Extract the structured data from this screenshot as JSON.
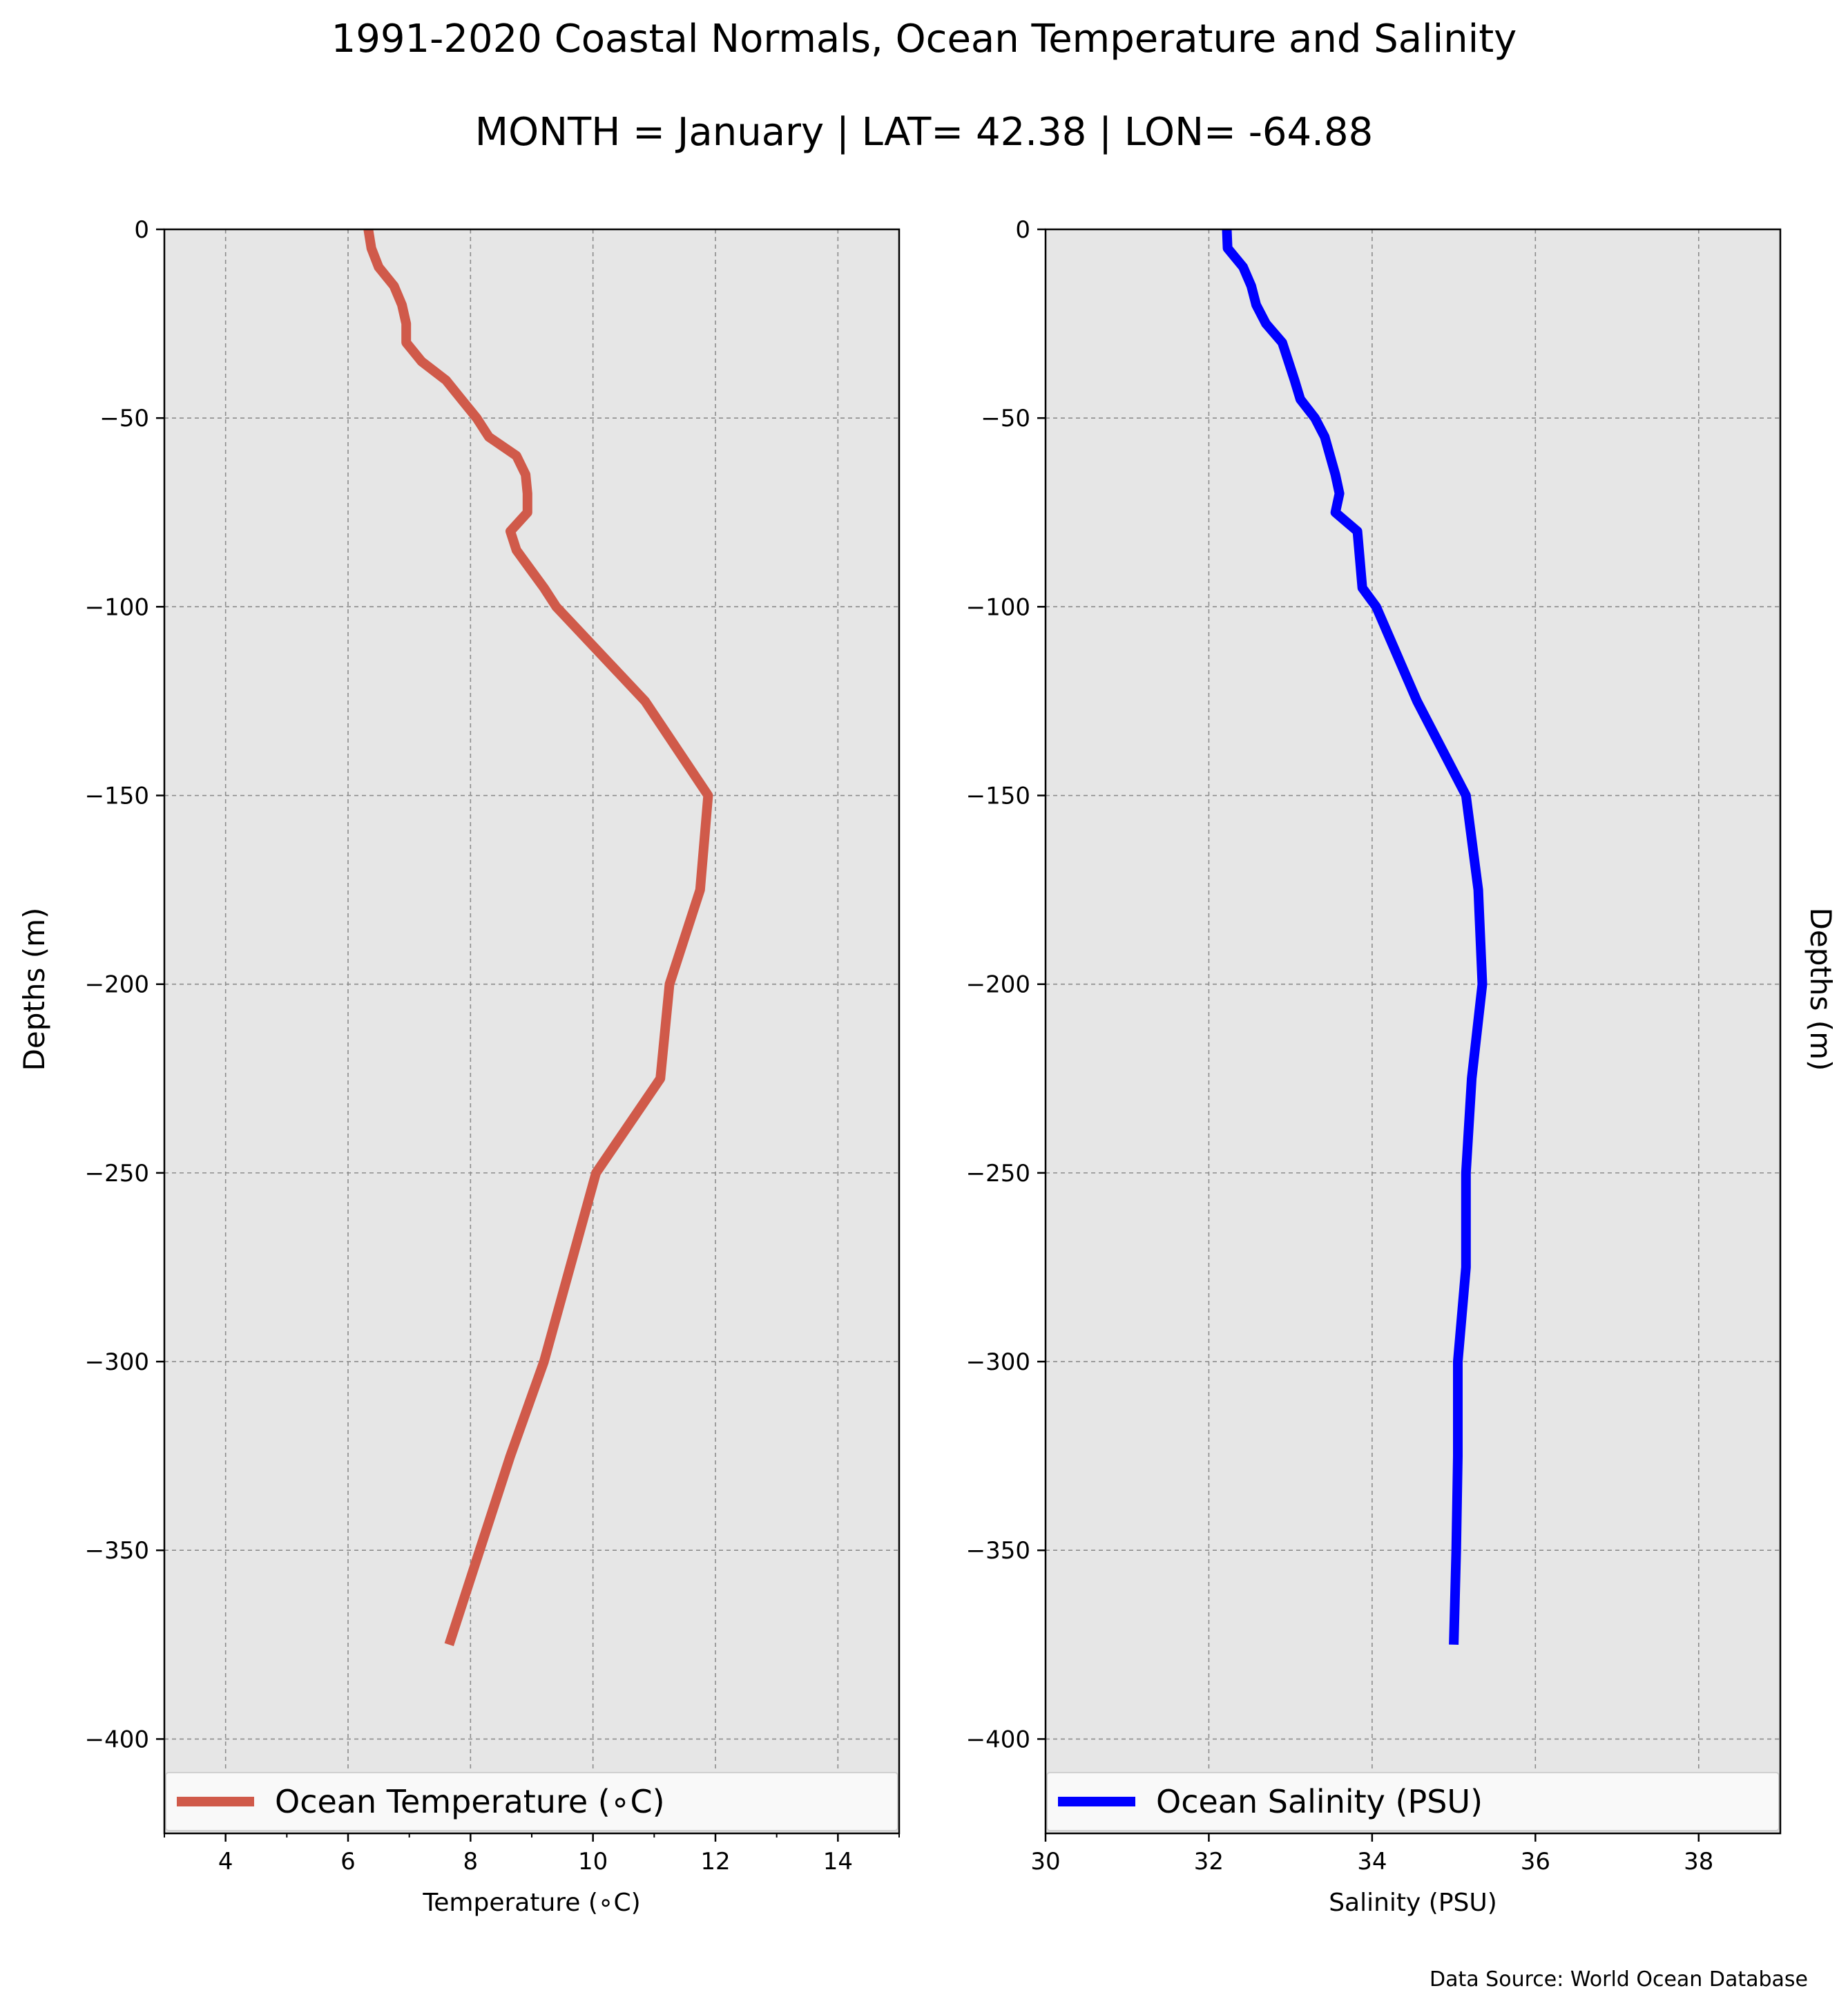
{
  "title": "1991-2020 Coastal Normals, Ocean Temperature and Salinity",
  "subtitle": "MONTH = January | LAT= 42.38 | LON= -64.88",
  "source": "Data Source: World Ocean Database",
  "chart_data": [
    {
      "type": "line",
      "xlabel": "Temperature ($^\\circ$C)",
      "xlabel_display": "Temperature (∘C)",
      "ylabel": "Depths (m)",
      "xlim": [
        3,
        15
      ],
      "ylim": [
        -425,
        0
      ],
      "xticks": [
        4,
        6,
        8,
        10,
        12,
        14
      ],
      "xtick_labels": [
        "4",
        "6",
        "8",
        "10",
        "12",
        "14"
      ],
      "yticks": [
        0,
        -50,
        -100,
        -150,
        -200,
        -250,
        -300,
        -350,
        -400
      ],
      "ytick_labels": [
        "0",
        "−50",
        "−100",
        "−150",
        "−200",
        "−250",
        "−300",
        "−350",
        "−400"
      ],
      "grid": true,
      "legend_position": "bottom",
      "series": [
        {
          "name": "Ocean Temperature (∘C)",
          "color": "#d05a4a",
          "x": [
            6.33,
            6.38,
            6.5,
            6.75,
            6.88,
            6.95,
            6.95,
            7.2,
            7.6,
            7.85,
            8.1,
            8.3,
            8.75,
            8.9,
            8.93,
            8.93,
            8.65,
            8.75,
            9.2,
            9.4,
            10.85,
            11.88,
            11.75,
            11.25,
            11.1,
            10.05,
            9.2,
            8.65,
            8.15,
            7.65
          ],
          "y": [
            0,
            -5,
            -10,
            -15,
            -20,
            -25,
            -30,
            -35,
            -40,
            -45,
            -50,
            -55,
            -60,
            -65,
            -70,
            -75,
            -80,
            -85,
            -95,
            -100,
            -125,
            -150,
            -175,
            -200,
            -225,
            -250,
            -300,
            -325,
            -350,
            -375
          ]
        }
      ]
    },
    {
      "type": "line",
      "xlabel": "Salinity (PSU)",
      "ylabel": "Depths (m)",
      "xlim": [
        30,
        39
      ],
      "ylim": [
        -425,
        0
      ],
      "xticks": [
        30,
        32,
        34,
        36,
        38
      ],
      "xtick_labels": [
        "30",
        "32",
        "34",
        "36",
        "38"
      ],
      "yticks": [
        0,
        -50,
        -100,
        -150,
        -200,
        -250,
        -300,
        -350,
        -400
      ],
      "ytick_labels": [
        "0",
        "−50",
        "−100",
        "−150",
        "−200",
        "−250",
        "−300",
        "−350",
        "−400"
      ],
      "grid": true,
      "legend_position": "bottom",
      "series": [
        {
          "name": "Ocean Salinity (PSU)",
          "color": "#0000ff",
          "x": [
            32.22,
            32.23,
            32.42,
            32.52,
            32.58,
            32.7,
            32.9,
            33.05,
            33.12,
            33.3,
            33.42,
            33.55,
            33.6,
            33.55,
            33.82,
            33.88,
            34.05,
            34.55,
            35.15,
            35.3,
            35.35,
            35.22,
            35.15,
            35.15,
            35.05,
            35.05,
            35.03,
            35.0
          ],
          "y": [
            0,
            -5,
            -10,
            -15,
            -20,
            -25,
            -30,
            -40,
            -45,
            -50,
            -55,
            -65,
            -70,
            -75,
            -80,
            -95,
            -100,
            -125,
            -150,
            -175,
            -200,
            -225,
            -250,
            -275,
            -300,
            -325,
            -350,
            -375
          ]
        }
      ]
    }
  ]
}
